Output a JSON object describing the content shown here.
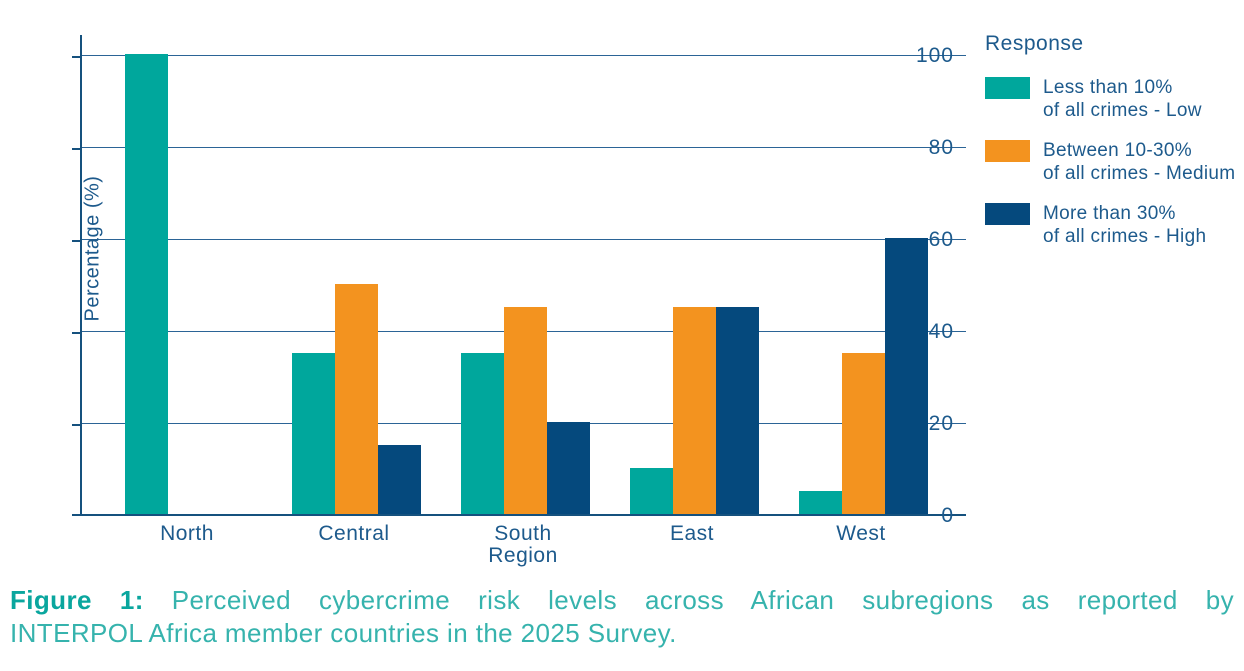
{
  "chart_data": {
    "type": "bar",
    "categories": [
      "North",
      "Central",
      "South",
      "East",
      "West"
    ],
    "series": [
      {
        "name": "Less than 10% of all crimes - Low",
        "label_line1": "Less than 10%",
        "label_line2": "of all crimes - Low",
        "color": "#00A79C",
        "values": [
          100,
          35,
          35,
          10,
          5
        ]
      },
      {
        "name": "Between 10-30% of all crimes - Medium",
        "label_line1": "Between 10-30%",
        "label_line2": "of all crimes - Medium",
        "color": "#F3931F",
        "values": [
          0,
          50,
          45,
          45,
          35
        ]
      },
      {
        "name": "More than 30% of all crimes - High",
        "label_line1": "More than 30%",
        "label_line2": "of all crimes - High",
        "color": "#05497D",
        "values": [
          0,
          15,
          20,
          45,
          60
        ]
      }
    ],
    "title": "",
    "xlabel": "Region",
    "ylabel": "Percentage (%)",
    "ylim": [
      0,
      100
    ],
    "yticks": [
      0,
      20,
      40,
      60,
      80,
      100
    ],
    "grid": true,
    "legend_title": "Response",
    "legend_position": "right"
  },
  "colors": {
    "axis_text": "#1D5A8C",
    "axis_line": "#15517E",
    "gridline": "#2B6496",
    "caption_accent": "#0AA69E",
    "caption_body": "#36B3AD"
  },
  "caption": {
    "prefix": "Figure 1:",
    "line1": "Perceived cybercrime risk levels across African subregions as reported by",
    "line2": "INTERPOL Africa member countries in the 2025 Survey."
  }
}
